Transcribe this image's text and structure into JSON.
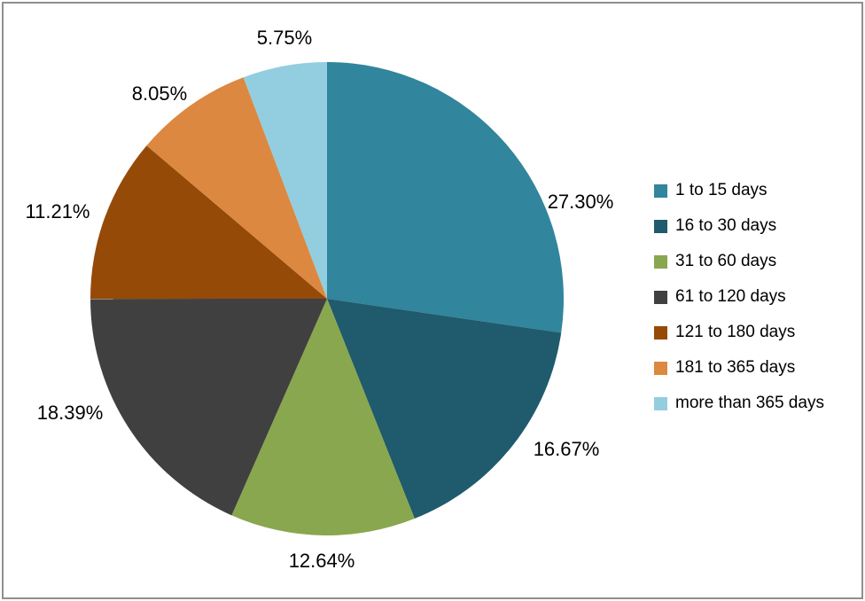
{
  "chart_data": {
    "type": "pie",
    "title": "",
    "legend_position": "right",
    "data_labels": "outside-end percentage",
    "start_angle_deg": 0,
    "direction": "clockwise",
    "slices": [
      {
        "category": "1 to 15 days",
        "value": 27.3,
        "display": "27.30%",
        "color": "#31859C"
      },
      {
        "category": "16 to 30 days",
        "value": 16.67,
        "display": "16.67%",
        "color": "#1F5B6C"
      },
      {
        "category": "31 to 60 days",
        "value": 12.64,
        "display": "12.64%",
        "color": "#89A74E"
      },
      {
        "category": "61 to 120 days",
        "value": 18.39,
        "display": "18.39%",
        "color": "#404040"
      },
      {
        "category": "121 to 180 days",
        "value": 11.21,
        "display": "11.21%",
        "color": "#964A07"
      },
      {
        "category": "181 to 365 days",
        "value": 8.05,
        "display": "8.05%",
        "color": "#DC8840"
      },
      {
        "category": "more than 365 days",
        "value": 5.75,
        "display": "5.75%",
        "color": "#92CEDF"
      }
    ]
  }
}
